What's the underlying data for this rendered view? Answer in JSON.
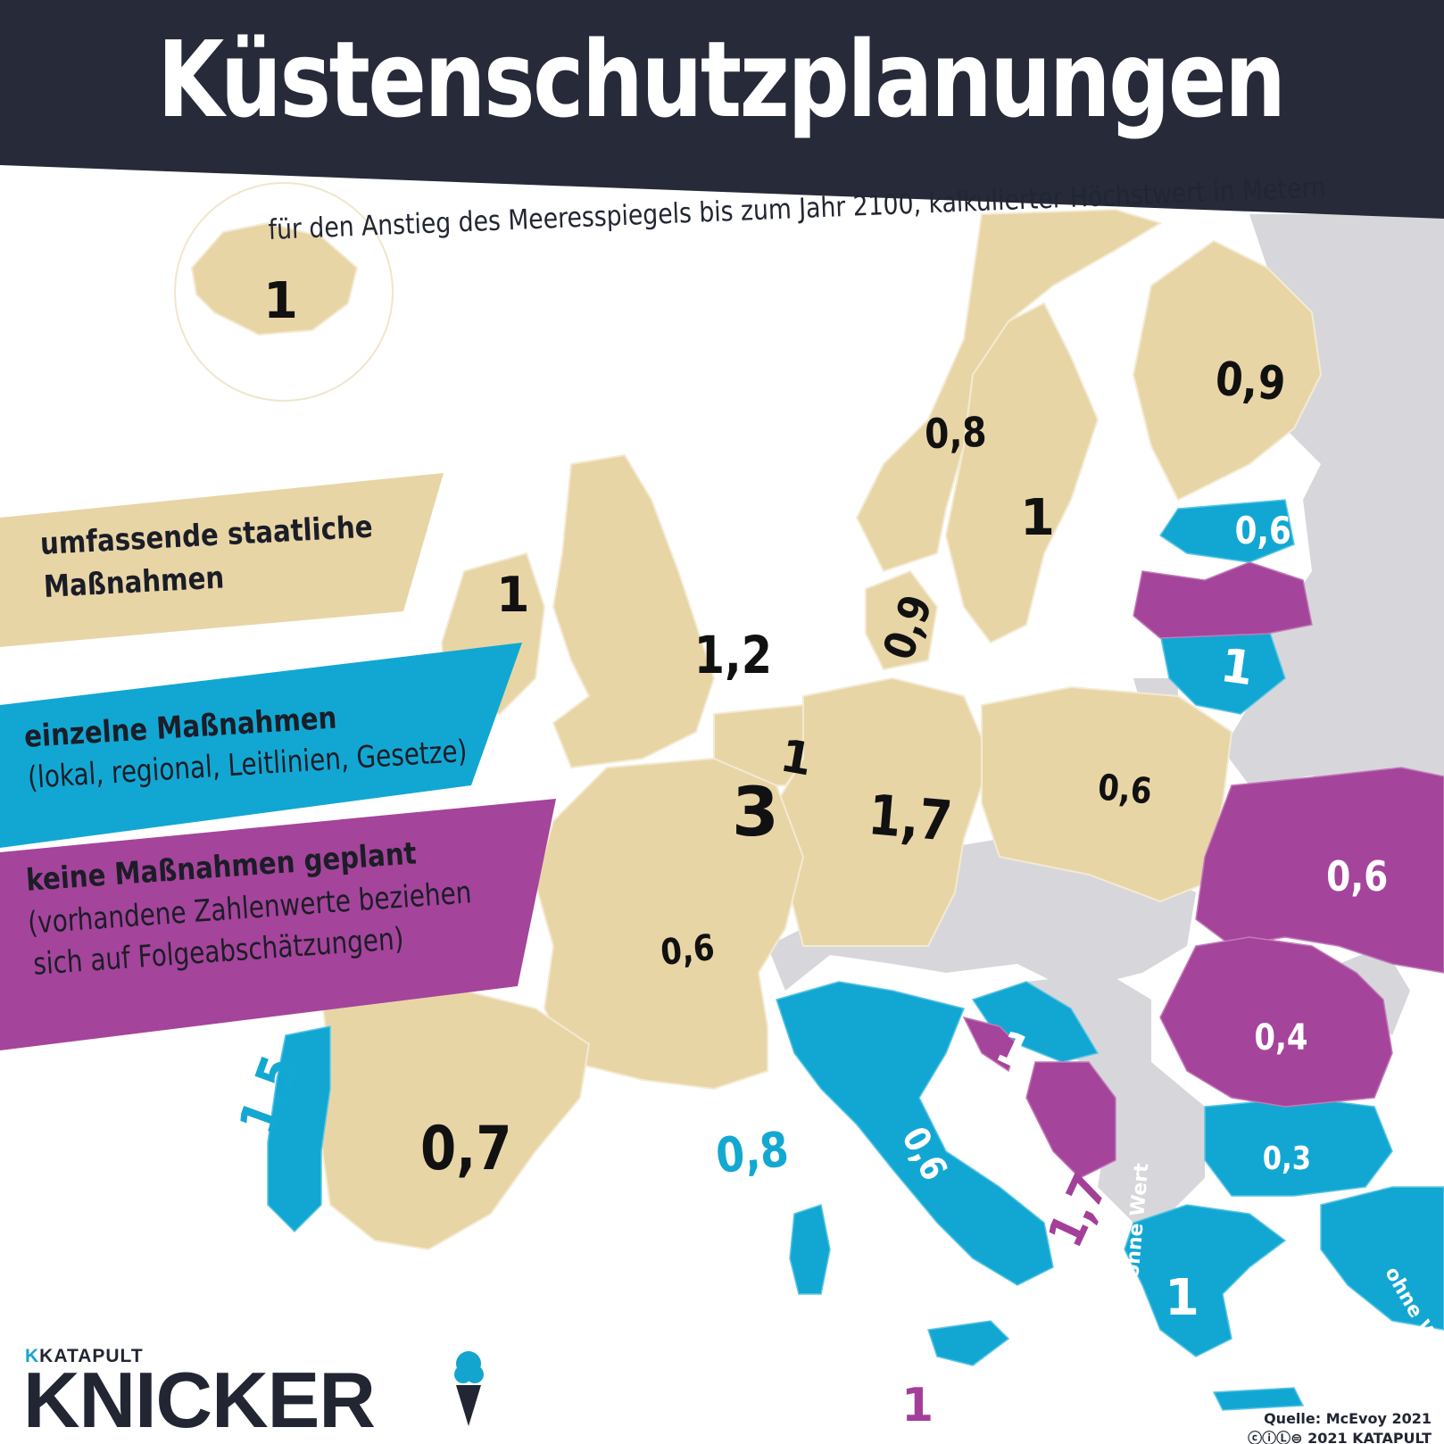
{
  "title": "Küstenschutzplanungen",
  "subtitle": "für den Anstieg des Meeresspiegels bis zum Jahr 2100, kalkulierter Höchstwert in Metern",
  "colors": {
    "header": "#262a39",
    "comprehensive": "#e8d5a6",
    "individual": "#12a7d3",
    "none": "#a5449b",
    "no_data": "#d7d7db"
  },
  "legend": {
    "comprehensive": {
      "line1": "umfassende staatliche",
      "line2": "Maßnahmen"
    },
    "individual": {
      "line1": "einzelne Maßnahmen",
      "line2": "(lokal, regional, Leitlinien, Gesetze)"
    },
    "none": {
      "line1": "keine Maßnahmen geplant",
      "line2": "(vorhandene Zahlenwerte beziehen",
      "line3": "sich auf Folgeabschätzungen)"
    }
  },
  "labels": {
    "iceland": "1",
    "ireland": "1",
    "uk": "1,2",
    "norway": "0,8",
    "sweden": "1",
    "finland": "0,9",
    "estonia": "0,6",
    "lithuania": "1",
    "denmark": "0,9",
    "netherlands": "1",
    "belgium": "3",
    "germany": "1,7",
    "poland": "0,6",
    "ukraine": "0,6",
    "france": "0,6",
    "spain": "0,7",
    "portugal": "1,5",
    "monaco": "0,8",
    "italy": "0,6",
    "slovenia": "1",
    "romania": "0,4",
    "bulgaria": "0,3",
    "montenegro": "1,7",
    "albania": "ohne Wert",
    "greece": "1",
    "turkey": "ohne Wert",
    "malta": "1"
  },
  "source": "Quelle: McEvoy 2021",
  "copyright": "2021 KATAPULT",
  "brand": {
    "small": "KATAPULT",
    "big": "KNICKER"
  }
}
